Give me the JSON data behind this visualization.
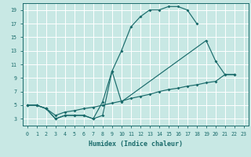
{
  "xlabel": "Humidex (Indice chaleur)",
  "xlim": [
    -0.5,
    23.5
  ],
  "ylim": [
    2.0,
    20.0
  ],
  "yticks": [
    3,
    5,
    7,
    9,
    11,
    13,
    15,
    17,
    19
  ],
  "xticks": [
    0,
    1,
    2,
    3,
    4,
    5,
    6,
    7,
    8,
    9,
    10,
    11,
    12,
    13,
    14,
    15,
    16,
    17,
    18,
    19,
    20,
    21,
    22,
    23
  ],
  "bg_color": "#c8e8e4",
  "line_color": "#1a6b6b",
  "grid_color": "#ffffff",
  "top_x": [
    0,
    1,
    2,
    3,
    4,
    5,
    6,
    7,
    8,
    9,
    10,
    11,
    12,
    13,
    14,
    15,
    16,
    17,
    18
  ],
  "top_y": [
    5,
    5,
    4.5,
    3,
    3.5,
    3.5,
    3.5,
    3,
    5.5,
    10,
    13,
    16.5,
    18,
    19,
    19,
    19.5,
    19.5,
    19,
    17
  ],
  "spike_x": [
    0,
    1,
    2,
    3,
    4,
    5,
    6,
    7,
    8,
    9,
    10,
    11,
    12,
    13,
    14,
    15,
    16,
    17,
    18,
    19,
    20,
    21,
    22
  ],
  "spike_y": [
    5,
    5,
    4.5,
    3,
    3.5,
    3.5,
    3.5,
    3,
    3.5,
    10,
    5.5,
    5.5,
    5.5,
    5.5,
    5.5,
    5.5,
    5.5,
    5.5,
    5.5,
    14.5,
    11.5,
    9.5,
    9.5
  ],
  "linear_x": [
    0,
    1,
    2,
    3,
    4,
    5,
    6,
    7,
    8,
    9,
    10,
    11,
    12,
    13,
    14,
    15,
    16,
    17,
    18,
    19,
    20,
    21,
    22
  ],
  "linear_y": [
    5,
    5,
    4.5,
    3.5,
    4.0,
    4.2,
    4.5,
    4.7,
    5.0,
    5.3,
    5.6,
    6.0,
    6.3,
    6.6,
    7.0,
    7.3,
    7.5,
    7.8,
    8.0,
    8.3,
    8.5,
    9.5,
    9.5
  ]
}
